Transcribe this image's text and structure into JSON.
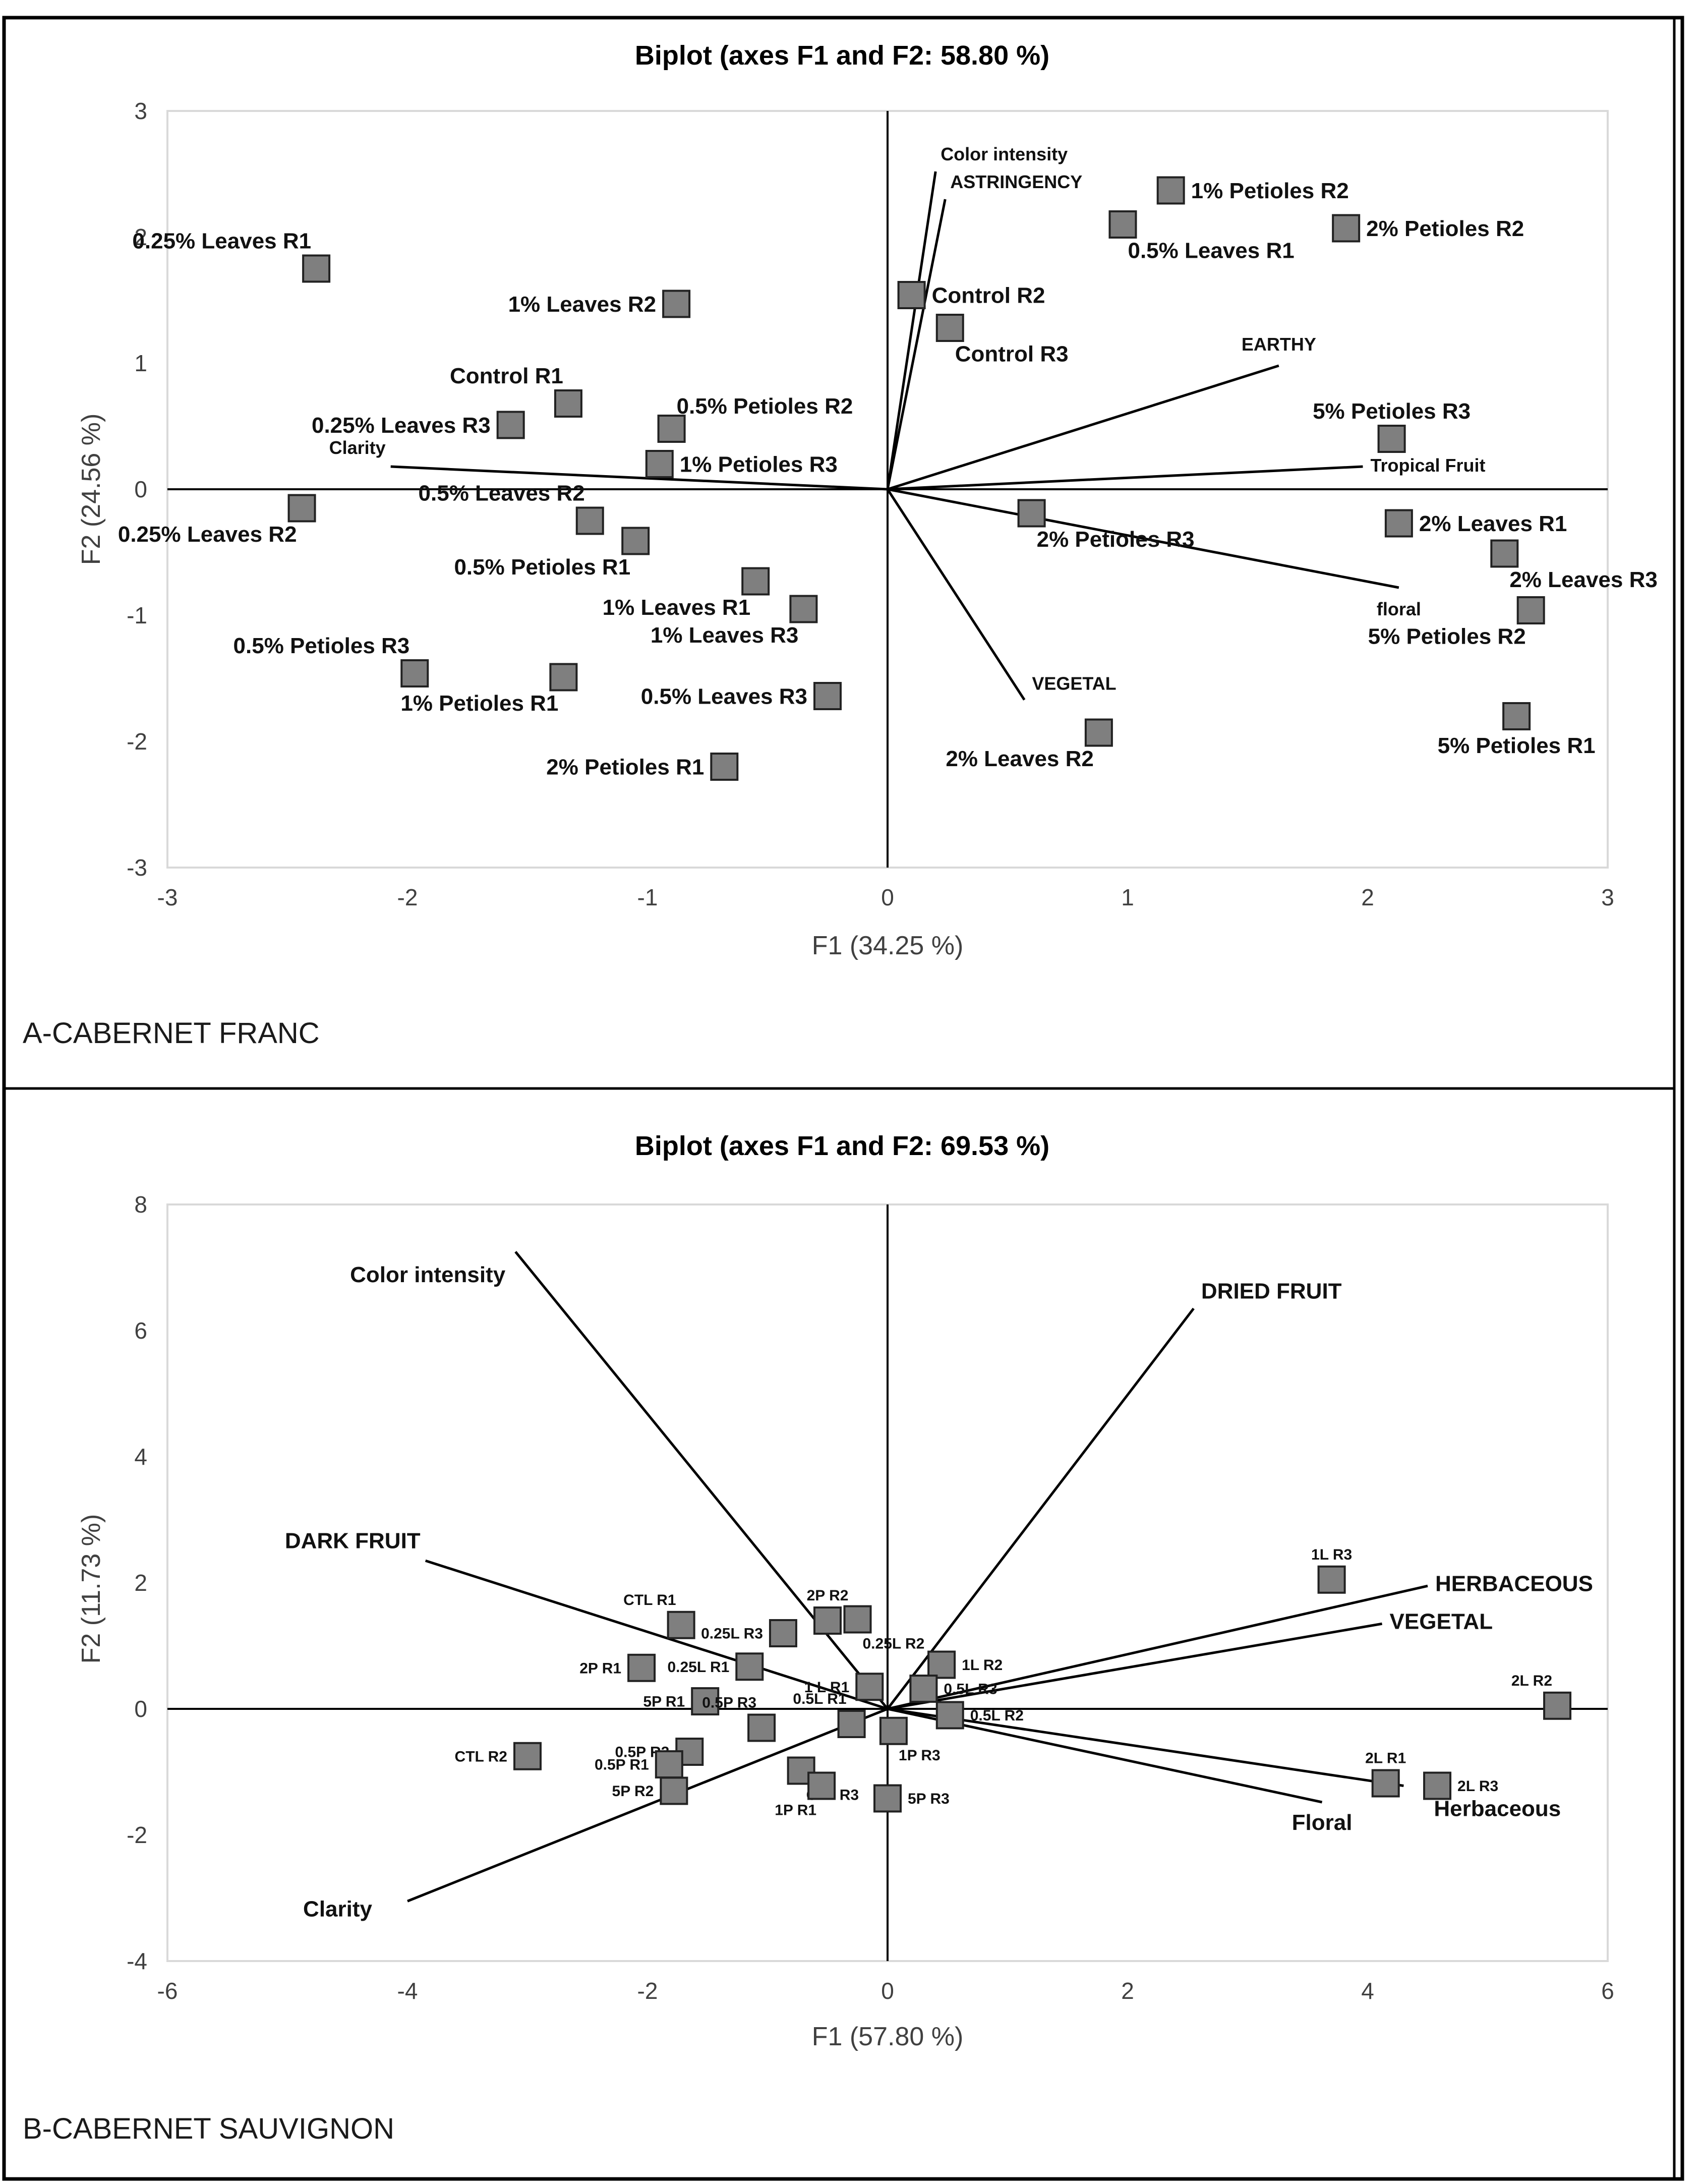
{
  "chart_data": [
    {
      "type": "scatter",
      "panel_label": "A-CABERNET FRANC",
      "title": "Biplot (axes F1 and F2: 58.80 %)",
      "xlabel": "F1 (34.25 %)",
      "ylabel": "F2 (24.56 %)",
      "xlim": [
        -3,
        3
      ],
      "ylim": [
        -3,
        3
      ],
      "xticks": [
        "-3",
        "-2",
        "-1",
        "0",
        "1",
        "2",
        "3"
      ],
      "yticks": [
        "-3",
        "-2",
        "-1",
        "0",
        "1",
        "2",
        "3"
      ],
      "grid": false,
      "label_size": 44,
      "vector_label_size": 36,
      "points": [
        {
          "label": "0.25% Leaves R1",
          "x": -2.38,
          "y": 1.75,
          "pos": "ul"
        },
        {
          "label": "1% Leaves R2",
          "x": -0.88,
          "y": 1.47,
          "pos": "left"
        },
        {
          "label": "Control R1",
          "x": -1.33,
          "y": 0.68,
          "pos": "ul"
        },
        {
          "label": "0.25% Leaves R3",
          "x": -1.57,
          "y": 0.51,
          "pos": "left"
        },
        {
          "label": "0.5% Petioles R2",
          "x": -0.9,
          "y": 0.48,
          "pos": "ur"
        },
        {
          "label": "1% Petioles R3",
          "x": -0.95,
          "y": 0.2,
          "pos": "right"
        },
        {
          "label": "0.25% Leaves R2",
          "x": -2.44,
          "y": -0.15,
          "pos": "dl"
        },
        {
          "label": "0.5% Leaves R2",
          "x": -1.24,
          "y": -0.25,
          "pos": "ul"
        },
        {
          "label": "0.5% Petioles R1",
          "x": -1.05,
          "y": -0.41,
          "pos": "dl"
        },
        {
          "label": "1% Leaves R1",
          "x": -0.55,
          "y": -0.73,
          "pos": "dl"
        },
        {
          "label": "1% Leaves R3",
          "x": -0.35,
          "y": -0.95,
          "pos": "dl"
        },
        {
          "label": "0.5% Petioles R3",
          "x": -1.97,
          "y": -1.46,
          "pos": "ul"
        },
        {
          "label": "1% Petioles R1",
          "x": -1.35,
          "y": -1.49,
          "pos": "dl"
        },
        {
          "label": "0.5% Leaves R3",
          "x": -0.25,
          "y": -1.64,
          "pos": "left"
        },
        {
          "label": "2% Petioles R1",
          "x": -0.68,
          "y": -2.2,
          "pos": "left"
        },
        {
          "label": "Control R2",
          "x": 0.1,
          "y": 1.54,
          "pos": "right"
        },
        {
          "label": "Control R3",
          "x": 0.26,
          "y": 1.28,
          "pos": "dr"
        },
        {
          "label": "0.5% Leaves R1",
          "x": 0.98,
          "y": 2.1,
          "pos": "dr"
        },
        {
          "label": "1% Petioles R2",
          "x": 1.18,
          "y": 2.37,
          "pos": "right"
        },
        {
          "label": "2% Petioles R2",
          "x": 1.91,
          "y": 2.07,
          "pos": "right"
        },
        {
          "label": "5% Petioles R3",
          "x": 2.1,
          "y": 0.4,
          "pos": "up"
        },
        {
          "label": "2% Petioles R3",
          "x": 0.6,
          "y": -0.19,
          "pos": "dr"
        },
        {
          "label": "2% Leaves R1",
          "x": 2.13,
          "y": -0.27,
          "pos": "right"
        },
        {
          "label": "2% Leaves R3",
          "x": 2.57,
          "y": -0.51,
          "pos": "dr"
        },
        {
          "label": "5% Petioles R2",
          "x": 2.68,
          "y": -0.96,
          "pos": "dl"
        },
        {
          "label": "5% Petioles R1",
          "x": 2.62,
          "y": -1.8,
          "pos": "down"
        },
        {
          "label": "2% Leaves R2",
          "x": 0.88,
          "y": -1.93,
          "pos": "dl"
        }
      ],
      "vectors": [
        {
          "label": "Color intensity",
          "x": 0.2,
          "y": 2.52,
          "pos": "vec_right_up"
        },
        {
          "label": "ASTRINGENCY",
          "x": 0.24,
          "y": 2.3,
          "pos": "vec_right_up"
        },
        {
          "label": "EARTHY",
          "x": 1.63,
          "y": 0.98,
          "pos": "vec_up"
        },
        {
          "label": "Tropical Fruit",
          "x": 1.98,
          "y": 0.18,
          "pos": "vec_right"
        },
        {
          "label": "floral",
          "x": 2.13,
          "y": -0.78,
          "pos": "vec_down"
        },
        {
          "label": "VEGETAL",
          "x": 0.57,
          "y": -1.67,
          "pos": "vec_up_right"
        },
        {
          "label": "Clarity",
          "x": -2.07,
          "y": 0.18,
          "pos": "vec_up_left"
        }
      ]
    },
    {
      "type": "scatter",
      "panel_label": "B-CABERNET SAUVIGNON",
      "title": "Biplot (axes F1 and F2: 69.53 %)",
      "xlabel": "F1 (57.80 %)",
      "ylabel": "F2 (11.73 %)",
      "xlim": [
        -6,
        6
      ],
      "ylim": [
        -4,
        8
      ],
      "xticks": [
        "-6",
        "-4",
        "-2",
        "0",
        "2",
        "4",
        "6"
      ],
      "yticks": [
        "-4",
        "-2",
        "0",
        "2",
        "4",
        "6",
        "8"
      ],
      "grid": false,
      "label_size": 30,
      "vector_label_size": 44,
      "points": [
        {
          "label": "CTL R1",
          "x": -1.72,
          "y": 1.33,
          "pos": "ul"
        },
        {
          "label": "2P R2",
          "x": -0.5,
          "y": 1.4,
          "pos": "up"
        },
        {
          "label": "0.25L R3",
          "x": -0.87,
          "y": 1.2,
          "pos": "left"
        },
        {
          "label": "0.25L R2",
          "x": -0.25,
          "y": 1.42,
          "pos": "dr"
        },
        {
          "label": "2P R1",
          "x": -2.05,
          "y": 0.65,
          "pos": "left"
        },
        {
          "label": "0.25L R1",
          "x": -1.15,
          "y": 0.67,
          "pos": "left"
        },
        {
          "label": "5P R1",
          "x": -1.52,
          "y": 0.12,
          "pos": "left"
        },
        {
          "label": "1 L R1",
          "x": -0.15,
          "y": 0.35,
          "pos": "left"
        },
        {
          "label": "0.5P R3",
          "x": -1.05,
          "y": -0.3,
          "pos": "ul"
        },
        {
          "label": "0.5L R1",
          "x": -0.3,
          "y": -0.24,
          "pos": "ul"
        },
        {
          "label": "CTL R2",
          "x": -3.0,
          "y": -0.75,
          "pos": "left"
        },
        {
          "label": "0.5P R2",
          "x": -1.65,
          "y": -0.68,
          "pos": "left"
        },
        {
          "label": "0.5P R1",
          "x": -1.82,
          "y": -0.88,
          "pos": "left"
        },
        {
          "label": "5P R2",
          "x": -1.78,
          "y": -1.3,
          "pos": "left"
        },
        {
          "label": "CTL R3",
          "x": -0.72,
          "y": -0.98,
          "pos": "dr"
        },
        {
          "label": "1P R1",
          "x": -0.55,
          "y": -1.22,
          "pos": "dl"
        },
        {
          "label": "1P R3",
          "x": 0.05,
          "y": -0.35,
          "pos": "dr"
        },
        {
          "label": "5P R3",
          "x": 0.0,
          "y": -1.42,
          "pos": "right"
        },
        {
          "label": "1L R2",
          "x": 0.45,
          "y": 0.7,
          "pos": "right"
        },
        {
          "label": "0.5L R3",
          "x": 0.3,
          "y": 0.32,
          "pos": "right"
        },
        {
          "label": "0.5L R2",
          "x": 0.52,
          "y": -0.1,
          "pos": "right"
        },
        {
          "label": "1L R3",
          "x": 3.7,
          "y": 2.05,
          "pos": "up"
        },
        {
          "label": "2L R2",
          "x": 5.58,
          "y": 0.05,
          "pos": "ul"
        },
        {
          "label": "2L R1",
          "x": 4.15,
          "y": -1.18,
          "pos": "up"
        },
        {
          "label": "2L R3",
          "x": 4.58,
          "y": -1.22,
          "pos": "right"
        }
      ],
      "vectors": [
        {
          "label": "Color intensity",
          "x": -3.1,
          "y": 7.25,
          "pos": "vec_left"
        },
        {
          "label": "DRIED FRUIT",
          "x": 2.55,
          "y": 6.35,
          "pos": "vec_up_right"
        },
        {
          "label": "DARK FRUIT",
          "x": -3.85,
          "y": 2.35,
          "pos": "vec_up_left"
        },
        {
          "label": "HERBACEOUS",
          "x": 4.5,
          "y": 1.95,
          "pos": "vec_right"
        },
        {
          "label": "VEGETAL",
          "x": 4.12,
          "y": 1.35,
          "pos": "vec_right"
        },
        {
          "label": "Floral",
          "x": 3.62,
          "y": -1.48,
          "pos": "vec_down"
        },
        {
          "label": "Herbaceous",
          "x": 4.3,
          "y": -1.22,
          "pos": "vec_down_right"
        },
        {
          "label": "Clarity",
          "x": -4.0,
          "y": -3.05,
          "pos": "vec_left_down"
        }
      ]
    }
  ]
}
